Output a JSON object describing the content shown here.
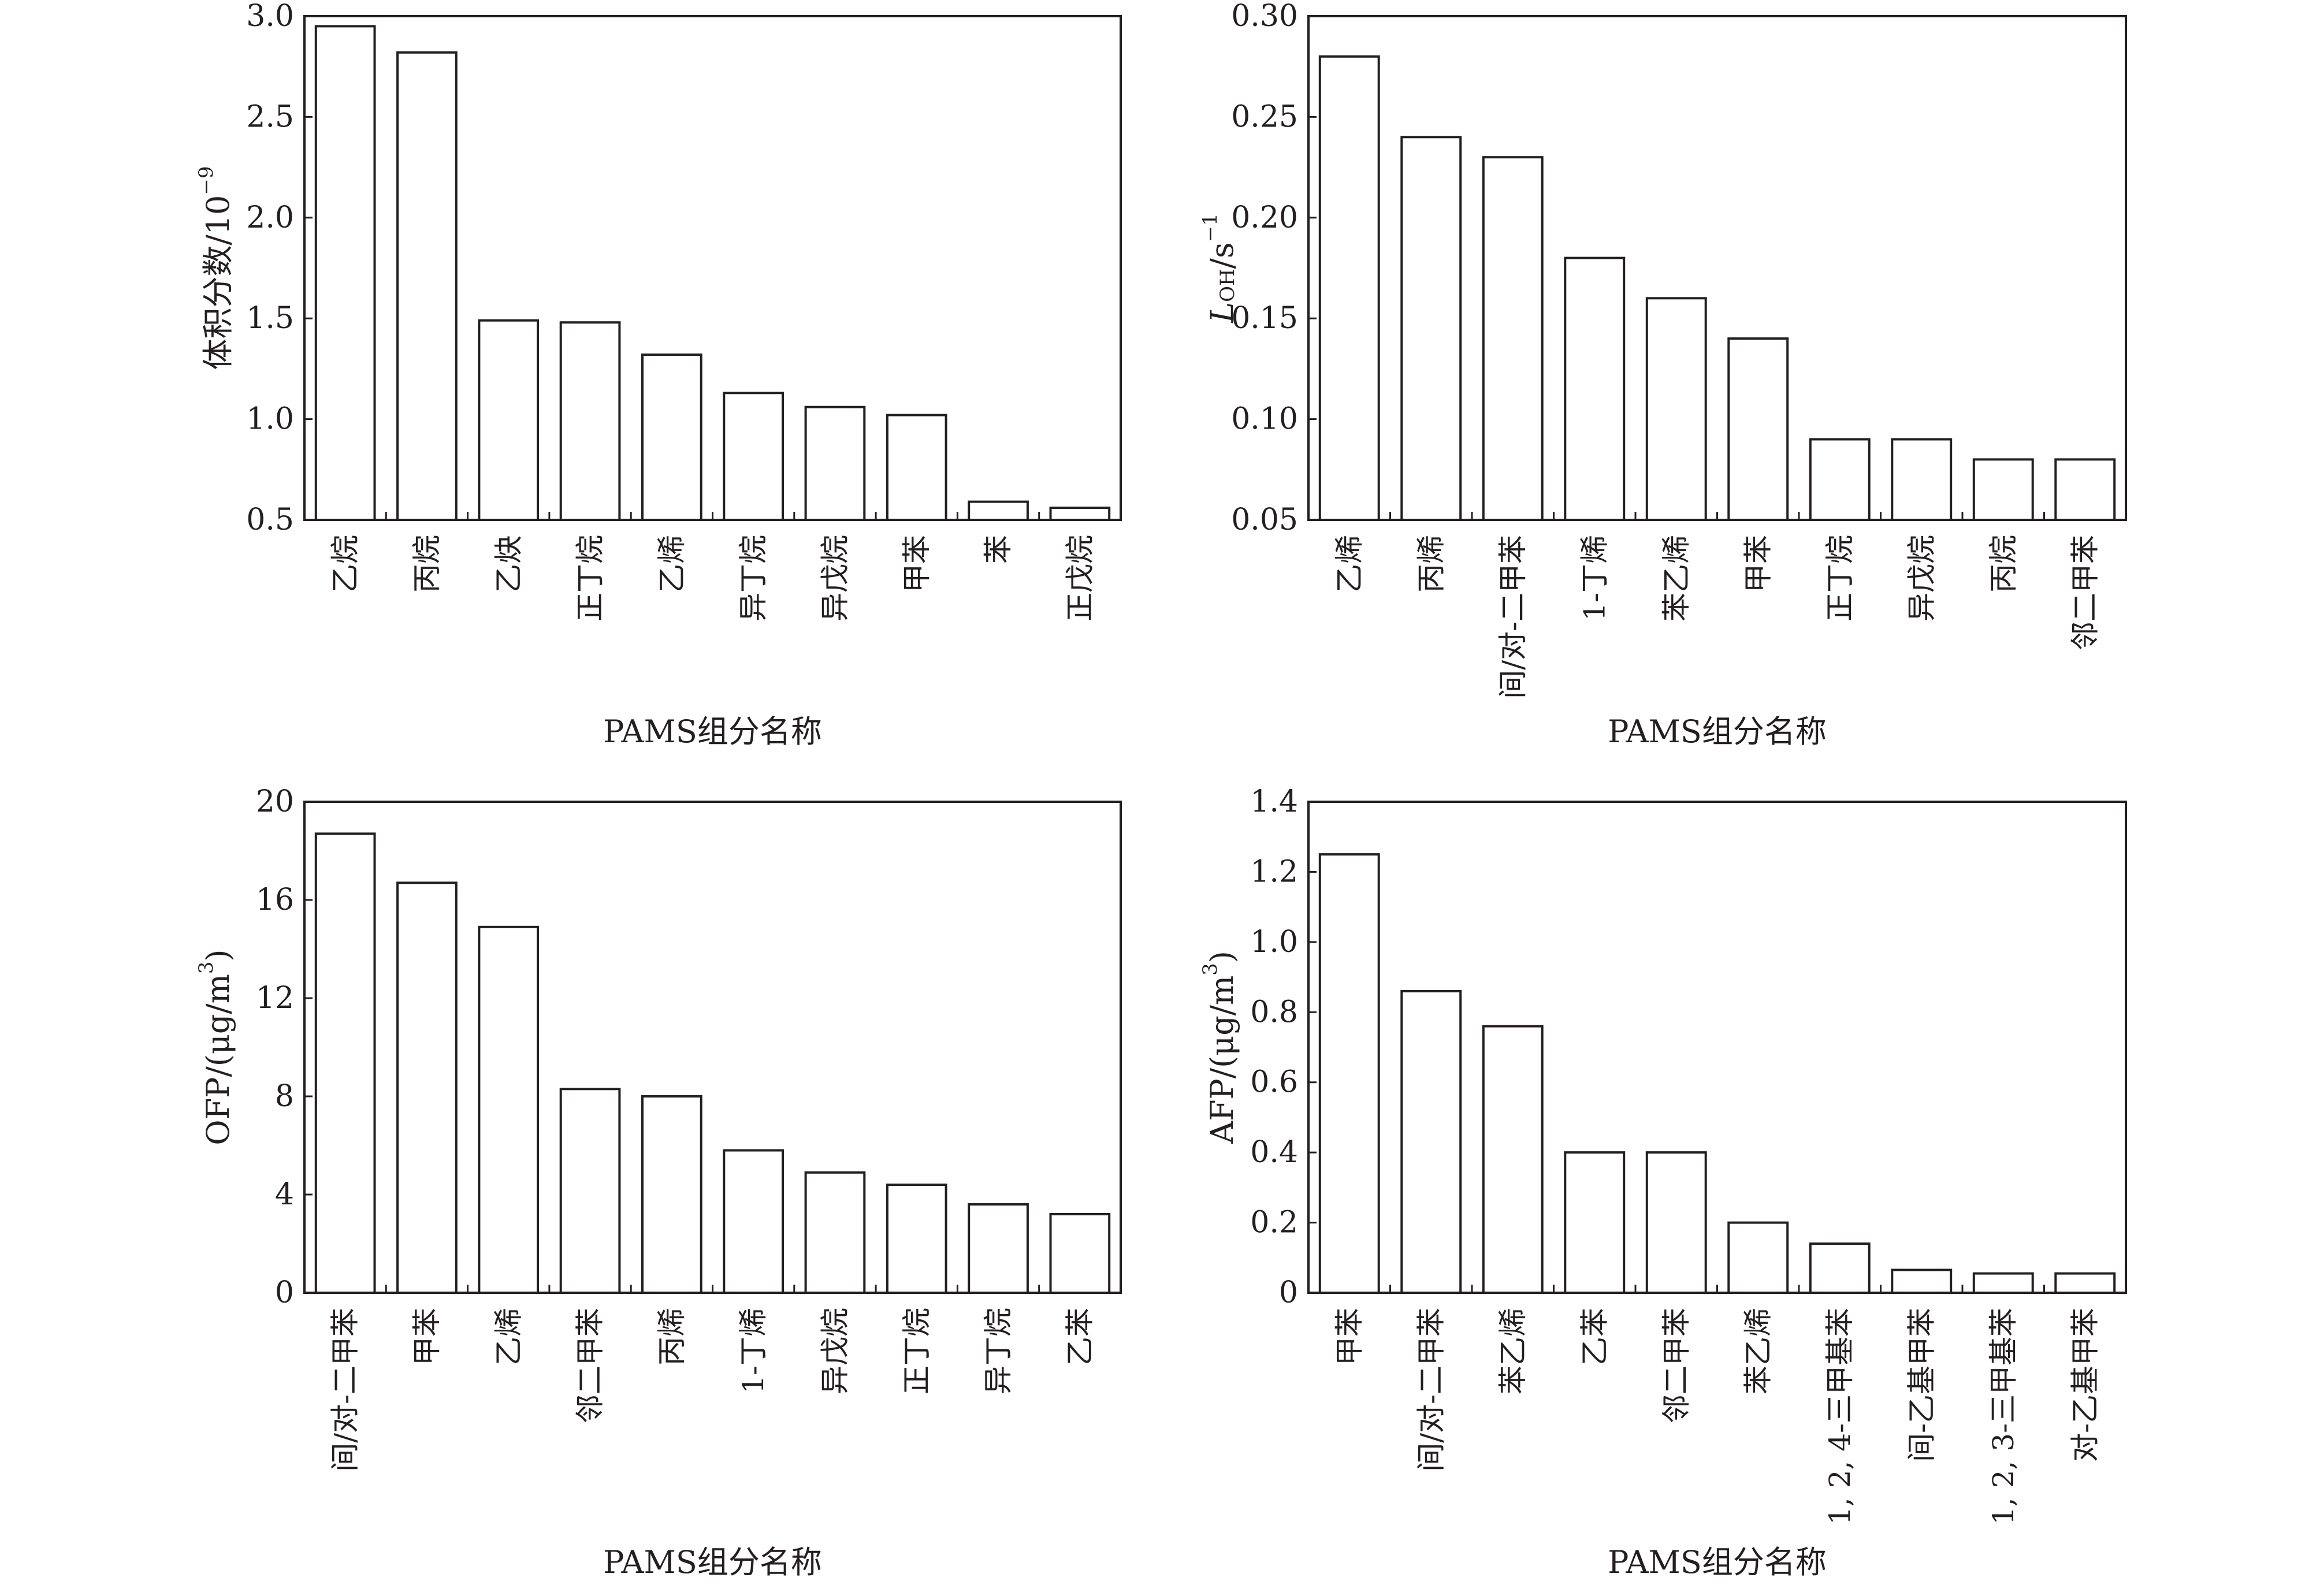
{
  "chart_data": [
    {
      "type": "bar",
      "categories": [
        "乙烷",
        "丙烷",
        "乙炔",
        "正丁烷",
        "乙烯",
        "异丁烷",
        "异戊烷",
        "甲苯",
        "苯",
        "正戊烷"
      ],
      "values": [
        2.95,
        2.82,
        1.49,
        1.48,
        1.32,
        1.13,
        1.06,
        1.02,
        0.59,
        0.56
      ],
      "xlabel": "PAMS组分名称",
      "ylabel": "体积分数/10",
      "ylabel_sup": "−9",
      "ylim": [
        0.5,
        3.0
      ],
      "yticks": [
        "0.5",
        "1.0",
        "1.5",
        "2.0",
        "2.5",
        "3.0"
      ],
      "grid": false
    },
    {
      "type": "bar",
      "categories": [
        "乙烯",
        "丙烯",
        "间/对-二甲苯",
        "1-丁烯",
        "苯乙烯",
        "甲苯",
        "正丁烷",
        "异戊烷",
        "丙烷",
        "邻二甲苯"
      ],
      "values": [
        0.28,
        0.24,
        0.23,
        0.18,
        0.16,
        0.14,
        0.09,
        0.09,
        0.08,
        0.08
      ],
      "xlabel": "PAMS组分名称",
      "ylabel": "L",
      "ylabel_sub": "OH",
      "ylabel_rest": "/s",
      "ylabel_sup": "−1",
      "ylim": [
        0.05,
        0.3
      ],
      "yticks": [
        "0.05",
        "0.10",
        "0.15",
        "0.20",
        "0.25",
        "0.30"
      ],
      "grid": false
    },
    {
      "type": "bar",
      "categories": [
        "间/对-二甲苯",
        "甲苯",
        "乙烯",
        "邻二甲苯",
        "丙烯",
        "1-丁烯",
        "异戊烷",
        "正丁烷",
        "异丁烷",
        "乙苯"
      ],
      "values": [
        18.7,
        16.7,
        14.9,
        8.3,
        8.0,
        5.8,
        4.9,
        4.4,
        3.6,
        3.2
      ],
      "xlabel": "PAMS组分名称",
      "ylabel": "OFP/(μg/m",
      "ylabel_sup": "3",
      "ylabel_tail": ")",
      "ylim": [
        0,
        20
      ],
      "yticks": [
        "0",
        "4",
        "8",
        "12",
        "16",
        "20"
      ],
      "grid": false
    },
    {
      "type": "bar",
      "categories": [
        "甲苯",
        "间/对-二甲苯",
        "苯乙烯",
        "乙苯",
        "邻二甲苯",
        "苯乙烯",
        "1, 2, 4-三甲基苯",
        "间-乙基甲苯",
        "1, 2, 3-三甲基苯",
        "对-乙基甲苯"
      ],
      "values": [
        1.25,
        0.86,
        0.76,
        0.4,
        0.4,
        0.2,
        0.14,
        0.065,
        0.055,
        0.055
      ],
      "xlabel": "PAMS组分名称",
      "ylabel": "AFP/(μg/m",
      "ylabel_sup": "3",
      "ylabel_tail": ")",
      "ylim": [
        0,
        1.4
      ],
      "yticks": [
        "0",
        "0.2",
        "0.4",
        "0.6",
        "0.8",
        "1.0",
        "1.2",
        "1.4"
      ],
      "grid": false
    }
  ]
}
